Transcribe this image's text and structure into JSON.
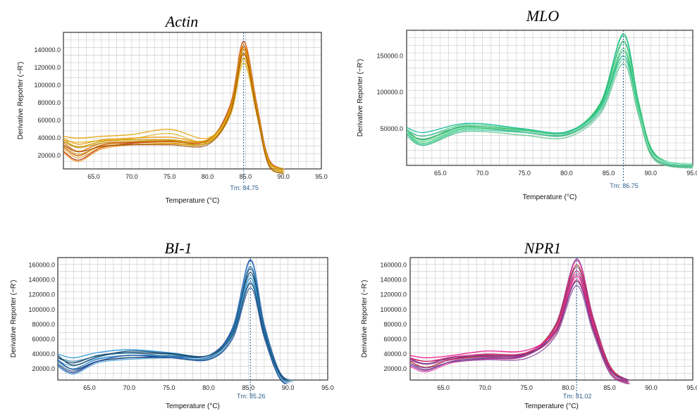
{
  "chart_data": [
    {
      "type": "line",
      "title": "Actin",
      "xlabel": "Temperature (°C)",
      "ylabel": "Derivative Reporter (−R')",
      "xlim": [
        61,
        95
      ],
      "ylim": [
        5000,
        160000
      ],
      "xticks": [
        65,
        70,
        75,
        80,
        85,
        90,
        95
      ],
      "xtick_labels": [
        "65.0",
        "70.0",
        "75.0",
        "80.0",
        "85.0",
        "90.0",
        "95.0"
      ],
      "yticks": [
        20000,
        40000,
        60000,
        80000,
        100000,
        120000,
        140000
      ],
      "ytick_labels": [
        "20000.0",
        "40000.0",
        "60000.0",
        "80000.0",
        "100000.0",
        "120000.0",
        "140000.0"
      ],
      "grid": true,
      "tm": 84.75,
      "tm_label": "Tm: 84.75",
      "colors": [
        "#c0392b",
        "#d35400",
        "#e67e22",
        "#f39c12",
        "#e6a817",
        "#cc9a06",
        "#b7950b",
        "#d4ac0d",
        "#a04000",
        "#c9a227"
      ],
      "series": [
        {
          "x": [
            61,
            63,
            66,
            70,
            75,
            80,
            83,
            84.75,
            86.5,
            88,
            90,
            93
          ],
          "y": [
            25000,
            15000,
            29000,
            34000,
            36000,
            37000,
            78000,
            150000,
            78000,
            18000,
            5000,
            2000
          ]
        },
        {
          "x": [
            61,
            63,
            66,
            70,
            75,
            80,
            83,
            84.75,
            86.5,
            88,
            90,
            93
          ],
          "y": [
            30000,
            20000,
            32000,
            35000,
            36000,
            37000,
            75000,
            145000,
            75000,
            17000,
            5000,
            2000
          ]
        },
        {
          "x": [
            61,
            63,
            66,
            70,
            75,
            80,
            83,
            84.75,
            86.5,
            88,
            90,
            93
          ],
          "y": [
            35000,
            25000,
            34000,
            36000,
            37000,
            38000,
            73000,
            140000,
            73000,
            16000,
            5000,
            2000
          ]
        },
        {
          "x": [
            61,
            63,
            66,
            70,
            75,
            80,
            83,
            84.75,
            86.5,
            88,
            90,
            93
          ],
          "y": [
            40000,
            33000,
            38000,
            40000,
            41000,
            38000,
            72000,
            135000,
            72000,
            16000,
            5000,
            2000
          ]
        },
        {
          "x": [
            61,
            63,
            66,
            70,
            75,
            80,
            83,
            84.75,
            86.5,
            88,
            90,
            93
          ],
          "y": [
            42000,
            40000,
            42000,
            44000,
            50000,
            40000,
            70000,
            130000,
            70000,
            15000,
            5000,
            2000
          ]
        },
        {
          "x": [
            61,
            63,
            66,
            70,
            75,
            80,
            83,
            84.75,
            86.5,
            88,
            90,
            93
          ],
          "y": [
            38000,
            30000,
            36000,
            38000,
            38000,
            38000,
            74000,
            142000,
            74000,
            16000,
            5000,
            2000
          ]
        }
      ]
    },
    {
      "type": "line",
      "title": "MLO",
      "xlabel": "Temperature (°C)",
      "ylabel": "Derivative Reporter (−R')",
      "xlim": [
        61,
        95
      ],
      "ylim": [
        0,
        185000
      ],
      "xticks": [
        65,
        70,
        75,
        80,
        85,
        90,
        95
      ],
      "xtick_labels": [
        "65.0",
        "70.0",
        "75.0",
        "80.0",
        "85.0",
        "90.0",
        "95.0"
      ],
      "yticks": [
        50000,
        100000,
        150000
      ],
      "ytick_labels": [
        "50000.0",
        "100000.0",
        "150000.0"
      ],
      "grid": true,
      "tm": 86.75,
      "tm_label": "Tm: 86.75",
      "colors": [
        "#2ecc71",
        "#27ae60",
        "#58d68d",
        "#1abc9c",
        "#82e0aa",
        "#28b463",
        "#45b39d",
        "#52be80"
      ],
      "series": [
        {
          "x": [
            61,
            63,
            67,
            70,
            75,
            80,
            84,
            86.75,
            88.5,
            90,
            92,
            95
          ],
          "y": [
            45000,
            30000,
            48000,
            50000,
            47000,
            45000,
            85000,
            180000,
            90000,
            25000,
            5000,
            2000
          ]
        },
        {
          "x": [
            61,
            63,
            67,
            70,
            75,
            80,
            84,
            86.75,
            88.5,
            90,
            92,
            95
          ],
          "y": [
            48000,
            35000,
            52000,
            53000,
            48000,
            45000,
            82000,
            170000,
            86000,
            24000,
            5000,
            2000
          ]
        },
        {
          "x": [
            61,
            63,
            67,
            70,
            75,
            80,
            84,
            86.75,
            88.5,
            90,
            92,
            95
          ],
          "y": [
            50000,
            40000,
            54000,
            55000,
            49000,
            46000,
            80000,
            160000,
            82000,
            22000,
            5000,
            2000
          ]
        },
        {
          "x": [
            61,
            63,
            67,
            70,
            75,
            80,
            84,
            86.75,
            88.5,
            90,
            92,
            95
          ],
          "y": [
            52000,
            45000,
            56000,
            57000,
            50000,
            46000,
            78000,
            150000,
            78000,
            21000,
            5000,
            2000
          ]
        },
        {
          "x": [
            61,
            63,
            67,
            70,
            75,
            80,
            84,
            86.75,
            88.5,
            90,
            92,
            95
          ],
          "y": [
            46000,
            33000,
            50000,
            52000,
            47000,
            44000,
            76000,
            145000,
            76000,
            20000,
            5000,
            2000
          ]
        }
      ]
    },
    {
      "type": "line",
      "title": "BI-1",
      "xlabel": "Temperature (°C)",
      "ylabel": "Derivative Reporter (−R')",
      "xlim": [
        61,
        95
      ],
      "ylim": [
        5000,
        170000
      ],
      "xticks": [
        65,
        70,
        75,
        80,
        85,
        90,
        95
      ],
      "xtick_labels": [
        "65.0",
        "70.0",
        "75.0",
        "80.0",
        "85.0",
        "90.0",
        "95.0"
      ],
      "yticks": [
        20000,
        40000,
        60000,
        80000,
        100000,
        120000,
        140000,
        160000
      ],
      "ytick_labels": [
        "20000.0",
        "40000.0",
        "60000.0",
        "80000.0",
        "100000.0",
        "120000.0",
        "140000.0",
        "160000.0"
      ],
      "grid": true,
      "tm": 85.26,
      "tm_label": "Tm: 85.26",
      "colors": [
        "#1f3a93",
        "#2e86c1",
        "#154360",
        "#3498db",
        "#1b4f72",
        "#5dade2",
        "#2471a3",
        "#0b3d91"
      ],
      "series": [
        {
          "x": [
            61,
            63,
            66,
            70,
            75,
            80,
            83,
            85.26,
            87,
            89,
            91,
            93
          ],
          "y": [
            25000,
            15000,
            30000,
            35000,
            37000,
            38000,
            75000,
            167000,
            80000,
            15000,
            4000,
            2000
          ]
        },
        {
          "x": [
            61,
            63,
            66,
            70,
            75,
            80,
            83,
            85.26,
            87,
            89,
            91,
            93
          ],
          "y": [
            30000,
            20000,
            33000,
            38000,
            38000,
            38000,
            72000,
            158000,
            76000,
            14000,
            4000,
            2000
          ]
        },
        {
          "x": [
            61,
            63,
            66,
            70,
            75,
            80,
            83,
            85.26,
            87,
            89,
            91,
            93
          ],
          "y": [
            35000,
            28000,
            38000,
            42000,
            40000,
            38000,
            70000,
            150000,
            72000,
            13000,
            4000,
            2000
          ]
        },
        {
          "x": [
            61,
            63,
            66,
            70,
            75,
            80,
            83,
            85.26,
            87,
            89,
            91,
            93
          ],
          "y": [
            40000,
            35000,
            42000,
            46000,
            42000,
            38000,
            68000,
            142000,
            70000,
            12000,
            4000,
            2000
          ]
        },
        {
          "x": [
            61,
            63,
            66,
            70,
            75,
            80,
            83,
            85.26,
            87,
            89,
            91,
            93
          ],
          "y": [
            38000,
            25000,
            36000,
            44000,
            41000,
            38000,
            66000,
            135000,
            68000,
            12000,
            4000,
            2000
          ]
        }
      ]
    },
    {
      "type": "line",
      "title": "NPR1",
      "xlabel": "Temperature (°C)",
      "ylabel": "Derivative Reporter (−R')",
      "xlim": [
        61,
        95
      ],
      "ylim": [
        5000,
        170000
      ],
      "xticks": [
        65,
        70,
        75,
        80,
        85,
        90,
        95
      ],
      "xtick_labels": [
        "65.0",
        "70.0",
        "75.0",
        "80.0",
        "85.0",
        "90.0",
        "95.0"
      ],
      "yticks": [
        20000,
        40000,
        60000,
        80000,
        100000,
        120000,
        140000,
        160000
      ],
      "ytick_labels": [
        "20000.0",
        "40000.0",
        "60000.0",
        "80000.0",
        "100000.0",
        "120000.0",
        "140000.0",
        "160000.0"
      ],
      "grid": true,
      "tm": 81.02,
      "tm_label": "Tm: 81.02",
      "colors": [
        "#8e44ad",
        "#c0392b",
        "#d63384",
        "#e91e8c",
        "#6c3483",
        "#a9328f",
        "#c2185b",
        "#7d3c98"
      ],
      "series": [
        {
          "x": [
            61,
            63,
            66,
            70,
            75,
            78.5,
            81.02,
            83,
            85,
            87,
            89,
            91
          ],
          "y": [
            25000,
            18000,
            30000,
            35000,
            40000,
            80000,
            168000,
            90000,
            25000,
            6000,
            3000,
            2000
          ]
        },
        {
          "x": [
            61,
            63,
            66,
            70,
            75,
            78.5,
            81.02,
            83,
            85,
            87,
            89,
            91
          ],
          "y": [
            30000,
            22000,
            33000,
            37000,
            41000,
            78000,
            160000,
            86000,
            24000,
            6000,
            3000,
            2000
          ]
        },
        {
          "x": [
            61,
            63,
            66,
            70,
            75,
            78.5,
            81.02,
            83,
            85,
            87,
            89,
            91
          ],
          "y": [
            35000,
            30000,
            36000,
            40000,
            42000,
            75000,
            152000,
            82000,
            22000,
            6000,
            3000,
            2000
          ]
        },
        {
          "x": [
            61,
            63,
            66,
            70,
            75,
            78.5,
            81.02,
            83,
            85,
            87,
            89,
            91
          ],
          "y": [
            38000,
            35000,
            38000,
            44000,
            45000,
            72000,
            145000,
            78000,
            21000,
            6000,
            3000,
            2000
          ]
        },
        {
          "x": [
            61,
            63,
            66,
            70,
            75,
            78.5,
            81.02,
            83,
            85,
            87,
            89,
            91
          ],
          "y": [
            33000,
            27000,
            35000,
            38000,
            40000,
            70000,
            138000,
            75000,
            20000,
            6000,
            3000,
            2000
          ]
        }
      ]
    }
  ]
}
